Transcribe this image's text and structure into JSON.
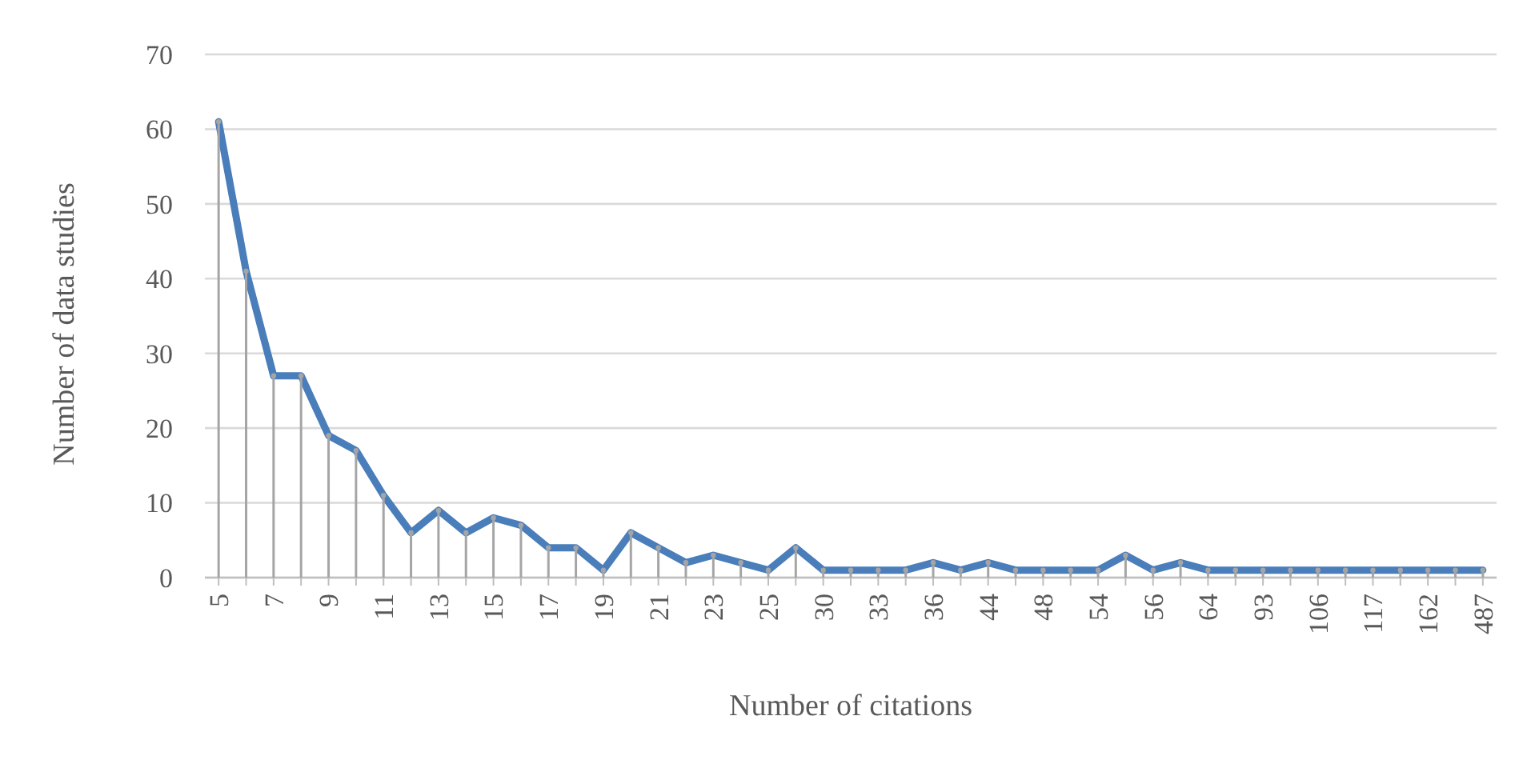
{
  "chart_data": {
    "type": "line",
    "xlabel": "Number of citations",
    "ylabel": "Number of data studies",
    "categories": [
      "5",
      null,
      "7",
      null,
      "9",
      null,
      "11",
      null,
      "13",
      null,
      "15",
      null,
      "17",
      null,
      "19",
      null,
      "21",
      null,
      "23",
      null,
      "25",
      null,
      "30",
      null,
      "33",
      null,
      "36",
      null,
      "44",
      null,
      "48",
      null,
      "54",
      null,
      "56",
      null,
      "64",
      null,
      "93",
      null,
      "106",
      null,
      "117",
      null,
      "162",
      null,
      "487"
    ],
    "series": [
      {
        "type": "lollipop",
        "color": "#a5a5a5",
        "marker": "circle",
        "values": [
          61,
          41,
          27,
          27,
          19,
          17,
          11,
          6,
          9,
          6,
          8,
          7,
          4,
          4,
          1,
          6,
          4,
          2,
          3,
          2,
          1,
          4,
          1,
          1,
          1,
          1,
          2,
          1,
          2,
          1,
          1,
          1,
          1,
          3,
          1,
          2,
          1,
          1,
          1,
          1,
          1,
          1,
          1,
          1,
          1,
          1,
          1
        ]
      },
      {
        "color": "#4a7ebb",
        "values": [
          61,
          41,
          27,
          27,
          19,
          17,
          11,
          6,
          9,
          6,
          8,
          7,
          4,
          4,
          1,
          6,
          4,
          2,
          3,
          2,
          1,
          4,
          1,
          1,
          1,
          1,
          2,
          1,
          2,
          1,
          1,
          1,
          1,
          3,
          1,
          2,
          1,
          1,
          1,
          1,
          1,
          1,
          1,
          1,
          1,
          1,
          1
        ]
      }
    ],
    "ylim": [
      0,
      70
    ],
    "yticks": [
      0,
      10,
      20,
      30,
      40,
      50,
      60,
      70
    ],
    "grid": "y",
    "marker": "none",
    "line_style": "solid"
  }
}
